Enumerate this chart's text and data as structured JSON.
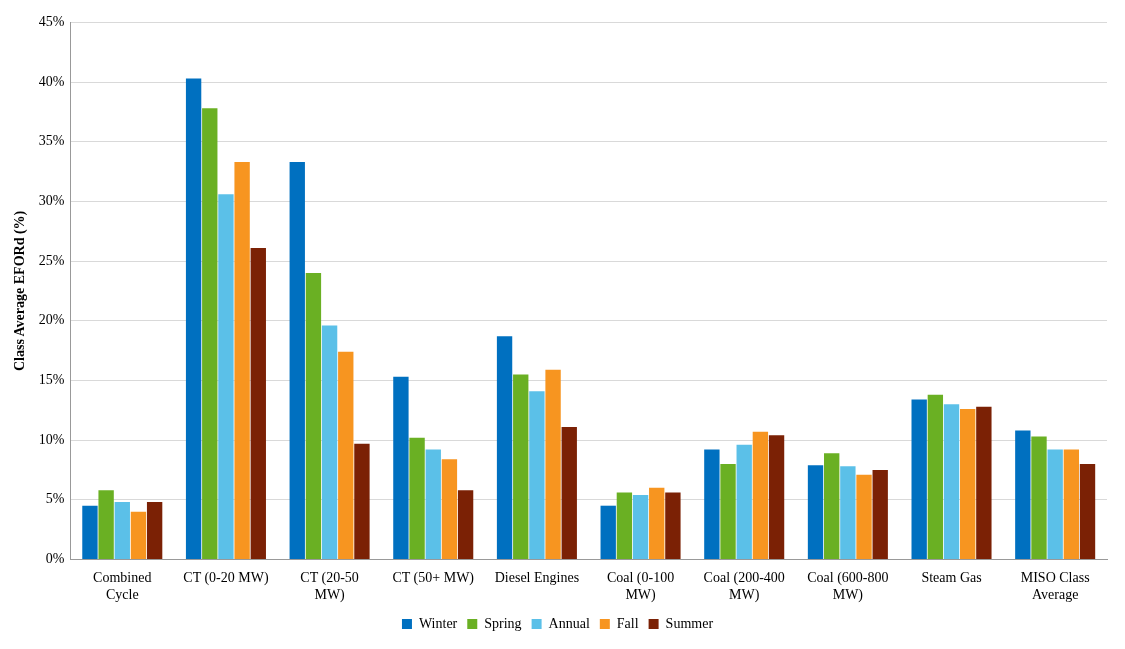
{
  "chart_data": {
    "type": "bar",
    "ylabel": "Class Average EFORd (%)",
    "categories": [
      "Combined Cycle",
      "CT (0-20 MW)",
      "CT (20-50 MW)",
      "CT (50+ MW)",
      "Diesel Engines",
      "Coal (0-100 MW)",
      "Coal (200-400 MW)",
      "Coal (600-800 MW)",
      "Steam Gas",
      "MISO Class Average"
    ],
    "series": [
      {
        "name": "Winter",
        "color": "#0070c0",
        "values": [
          4.5,
          40.3,
          33.3,
          15.3,
          18.7,
          4.5,
          9.2,
          7.9,
          13.4,
          10.8
        ]
      },
      {
        "name": "Spring",
        "color": "#6ab023",
        "values": [
          5.8,
          37.8,
          24.0,
          10.2,
          15.5,
          5.6,
          8.0,
          8.9,
          13.8,
          10.3
        ]
      },
      {
        "name": "Annual",
        "color": "#5bc0e8",
        "values": [
          4.8,
          30.6,
          19.6,
          9.2,
          14.1,
          5.4,
          9.6,
          7.8,
          13.0,
          9.2
        ]
      },
      {
        "name": "Fall",
        "color": "#f79520",
        "values": [
          4.0,
          33.3,
          17.4,
          8.4,
          15.9,
          6.0,
          10.7,
          7.1,
          12.6,
          9.2
        ]
      },
      {
        "name": "Summer",
        "color": "#7b2105",
        "values": [
          4.8,
          26.1,
          9.7,
          5.8,
          11.1,
          5.6,
          10.4,
          7.5,
          12.8,
          8.0
        ]
      }
    ],
    "ylim": [
      0,
      45
    ],
    "yticks": [
      {
        "value": 0,
        "label": "0%"
      },
      {
        "value": 5,
        "label": "5%"
      },
      {
        "value": 10,
        "label": "10%"
      },
      {
        "value": 15,
        "label": "15%"
      },
      {
        "value": 20,
        "label": "20%"
      },
      {
        "value": 25,
        "label": "25%"
      },
      {
        "value": 30,
        "label": "30%"
      },
      {
        "value": 35,
        "label": "35%"
      },
      {
        "value": 40,
        "label": "40%"
      },
      {
        "value": 45,
        "label": "45%"
      }
    ],
    "grid": "y",
    "legend": "bottom"
  }
}
